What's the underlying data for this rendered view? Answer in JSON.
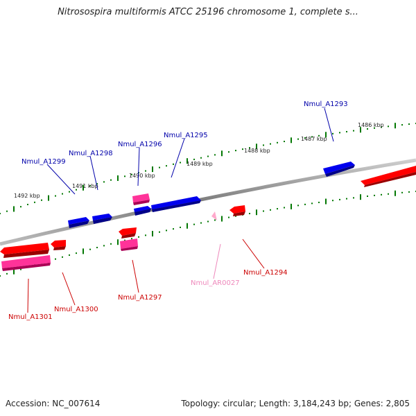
{
  "title": "Nitrosospira multiformis ATCC 25196 chromosome 1, complete s...",
  "footer": {
    "accession": "Accession: NC_007614",
    "summary": "Topology: circular; Length: 3,184,243 bp; Genes: 2,805"
  },
  "ticks": [
    "1492 kbp",
    "1491 kbp",
    "1490 kbp",
    "1489 kbp",
    "1488 kbp",
    "1487 kbp",
    "1486 kbp"
  ],
  "genes": [
    {
      "name": "Nmul_A1293",
      "strand": "+",
      "type": "CDS",
      "color": "#0000cc"
    },
    {
      "name": "Nmul_A1294",
      "strand": "-",
      "type": "CDS",
      "color": "#cc0000"
    },
    {
      "name": "Nmul_AR0027",
      "strand": "-",
      "type": "RNA",
      "color": "#ee88bb"
    },
    {
      "name": "Nmul_A1295",
      "strand": "+",
      "type": "CDS",
      "color": "#0000cc"
    },
    {
      "name": "Nmul_A1296",
      "strand": "+",
      "type": "CDS",
      "color": "#0000cc"
    },
    {
      "name": "Nmul_A1297",
      "strand": "-",
      "type": "CDS",
      "color": "#cc0000"
    },
    {
      "name": "Nmul_A1298",
      "strand": "+",
      "type": "CDS",
      "color": "#0000cc"
    },
    {
      "name": "Nmul_A1299",
      "strand": "+",
      "type": "CDS",
      "color": "#0000cc"
    },
    {
      "name": "Nmul_A1300",
      "strand": "-",
      "type": "CDS",
      "color": "#cc0000"
    },
    {
      "name": "Nmul_A1301",
      "strand": "-",
      "type": "CDS",
      "color": "#cc0000"
    }
  ],
  "colors": {
    "forward_cds": "#0000ff",
    "reverse_cds": "#ff0000",
    "pseudo_pink": "#ff3399",
    "rna": "#ffaacc",
    "backbone": "#888888",
    "tick_green": "#007700"
  }
}
